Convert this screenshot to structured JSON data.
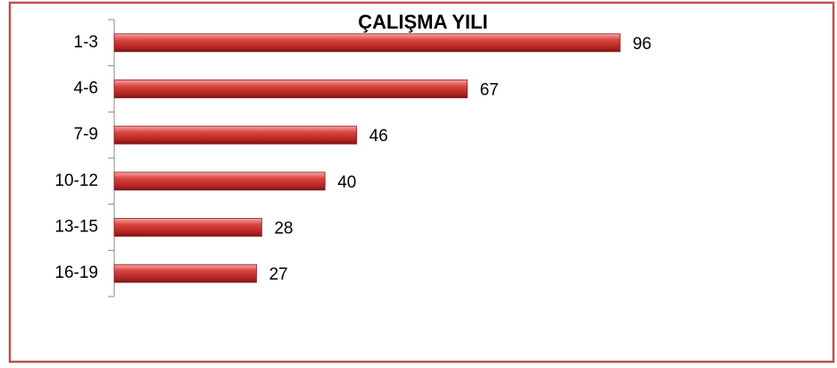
{
  "chart_data": {
    "type": "bar",
    "orientation": "horizontal",
    "title": "ÇALIŞMA YILI",
    "categories": [
      "1-3",
      "4-6",
      "7-9",
      "10-12",
      "13-15",
      "16-19"
    ],
    "values": [
      96,
      67,
      46,
      40,
      28,
      27
    ],
    "color": "#c0302f"
  }
}
